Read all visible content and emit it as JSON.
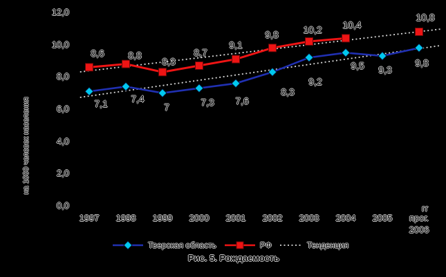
{
  "caption": "Рис. 5. Рождаемость",
  "colors": {
    "tver_line": "#2030b2",
    "tver_marker": "#00c8f0",
    "rf_line": "#ee1414",
    "rf_marker": "#ee1414",
    "trend": "#dadada"
  },
  "legend": {
    "items": [
      {
        "label": "Тверская область"
      },
      {
        "label": "РФ"
      },
      {
        "label": "Тенденция"
      }
    ]
  },
  "chart_data": {
    "type": "line",
    "title": "Рис. 5. Рождаемость",
    "ylabel": "на 1000 человек населения",
    "x_unit_label": "гг",
    "categories": [
      "1997",
      "1998",
      "1999",
      "2000",
      "2001",
      "2002",
      "2003",
      "2004",
      "2005",
      "прог.\n2006"
    ],
    "y_ticks": [
      "12,0",
      "10,0",
      "8,0",
      "6,0",
      "4,0",
      "2,0",
      "0,0"
    ],
    "ylim": [
      0,
      12
    ],
    "grid": false,
    "legend_position": "bottom",
    "series": [
      {
        "name": "Тверская область",
        "marker": "diamond",
        "values": [
          7.1,
          7.4,
          7.0,
          7.3,
          7.6,
          8.3,
          9.2,
          9.5,
          9.3,
          9.8
        ],
        "labels": [
          "7,1",
          "7,4",
          "7",
          "7,3",
          "7,6",
          "8,3",
          "9,2",
          "9,5",
          "9,3",
          "9,8"
        ],
        "label_side": "below",
        "label_dx": [
          8,
          8,
          -3,
          3,
          0,
          13,
          0,
          8,
          -5,
          -5
        ],
        "label_dy": [
          0,
          0,
          2,
          2,
          7,
          11,
          17,
          1,
          2,
          4
        ]
      },
      {
        "name": "РФ",
        "marker": "square",
        "values": [
          8.6,
          8.8,
          8.3,
          8.7,
          9.1,
          9.8,
          10.2,
          10.4,
          null,
          10.8
        ],
        "labels": [
          "8,6",
          "8,8",
          "8,3",
          "8,7",
          "9,1",
          "9,8",
          "10,2",
          "10,4",
          "",
          "10,8"
        ],
        "label_side": "above",
        "label_dx": [
          3,
          4,
          0,
          -7,
          -9,
          -10,
          -4,
          0,
          0,
          0
        ],
        "label_dy": [
          -5,
          2,
          0,
          -4,
          -6,
          -4,
          -2,
          -4,
          0,
          -6
        ]
      }
    ],
    "trend": {
      "name": "Тенденция",
      "style": "dotted",
      "lines": [
        {
          "from": [
            -0.25,
            6.73
          ],
          "to": [
            9.6,
            9.95
          ]
        },
        {
          "from": [
            -0.25,
            8.31
          ],
          "to": [
            9.6,
            10.97
          ]
        }
      ]
    }
  }
}
